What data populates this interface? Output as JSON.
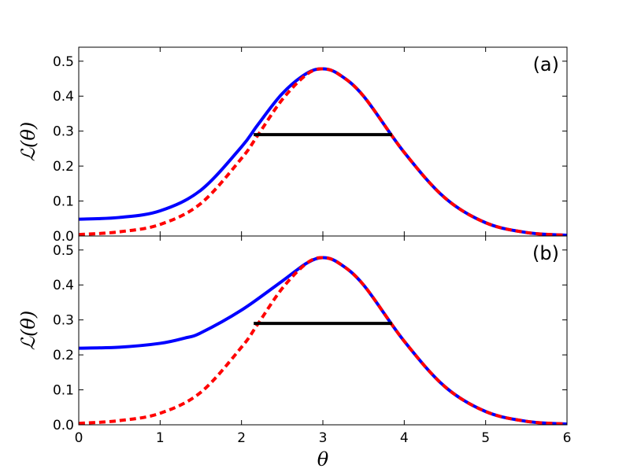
{
  "chart_data": [
    {
      "id": "a",
      "type": "line",
      "panel_label": "(a)",
      "ylabel": "ℒ(θ)",
      "xlabel": "",
      "xlim": [
        0,
        6
      ],
      "ylim": [
        0,
        0.54
      ],
      "yticks": [
        0.0,
        0.1,
        0.2,
        0.3,
        0.4,
        0.5
      ],
      "ytick_labels": [
        "0.0",
        "0.1",
        "0.2",
        "0.3",
        "0.4",
        "0.5"
      ],
      "grid": false,
      "series": [
        {
          "style": "solid",
          "color": "#0000ff",
          "x": [
            0,
            0.5,
            1.0,
            1.5,
            2.0,
            2.2,
            2.5,
            2.8,
            3.0,
            3.2,
            3.5,
            4.0,
            4.5,
            5.0,
            5.5,
            6.0
          ],
          "y": [
            0.048,
            0.053,
            0.072,
            0.131,
            0.255,
            0.318,
            0.407,
            0.465,
            0.478,
            0.462,
            0.4,
            0.239,
            0.109,
            0.038,
            0.01,
            0.002
          ]
        },
        {
          "style": "dashed",
          "color": "#ff0000",
          "x": [
            0,
            0.5,
            1.0,
            1.5,
            2.0,
            2.2,
            2.5,
            2.8,
            3.0,
            3.2,
            3.5,
            4.0,
            4.5,
            5.0,
            5.5,
            6.0
          ],
          "y": [
            0.004,
            0.012,
            0.033,
            0.093,
            0.222,
            0.288,
            0.39,
            0.462,
            0.478,
            0.462,
            0.4,
            0.239,
            0.109,
            0.038,
            0.01,
            0.002
          ]
        },
        {
          "style": "solid",
          "color": "#000000",
          "x": [
            2.15,
            3.85
          ],
          "y": [
            0.29,
            0.29
          ]
        }
      ]
    },
    {
      "id": "b",
      "type": "line",
      "panel_label": "(b)",
      "ylabel": "ℒ(θ)",
      "xlabel": "θ",
      "xlim": [
        0,
        6
      ],
      "ylim": [
        0,
        0.54
      ],
      "xticks": [
        0,
        1,
        2,
        3,
        4,
        5,
        6
      ],
      "xtick_labels": [
        "0",
        "1",
        "2",
        "3",
        "4",
        "5",
        "6"
      ],
      "yticks": [
        0.0,
        0.1,
        0.2,
        0.3,
        0.4,
        0.5
      ],
      "ytick_labels": [
        "0.0",
        "0.1",
        "0.2",
        "0.3",
        "0.4",
        "0.5"
      ],
      "grid": false,
      "series": [
        {
          "style": "solid",
          "color": "#0000ff",
          "x": [
            0,
            0.5,
            1.0,
            1.3,
            1.5,
            2.0,
            2.5,
            2.8,
            3.0,
            3.2,
            3.5,
            4.0,
            4.5,
            5.0,
            5.5,
            6.0
          ],
          "y": [
            0.219,
            0.222,
            0.233,
            0.248,
            0.263,
            0.328,
            0.411,
            0.462,
            0.478,
            0.462,
            0.4,
            0.239,
            0.109,
            0.038,
            0.01,
            0.002
          ]
        },
        {
          "style": "dashed",
          "color": "#ff0000",
          "x": [
            0,
            0.5,
            1.0,
            1.5,
            2.0,
            2.2,
            2.5,
            2.8,
            3.0,
            3.2,
            3.5,
            4.0,
            4.5,
            5.0,
            5.5,
            6.0
          ],
          "y": [
            0.004,
            0.012,
            0.033,
            0.093,
            0.222,
            0.288,
            0.39,
            0.462,
            0.478,
            0.462,
            0.4,
            0.239,
            0.109,
            0.038,
            0.01,
            0.002
          ]
        },
        {
          "style": "solid",
          "color": "#000000",
          "x": [
            2.15,
            3.85
          ],
          "y": [
            0.29,
            0.29
          ]
        }
      ]
    }
  ]
}
